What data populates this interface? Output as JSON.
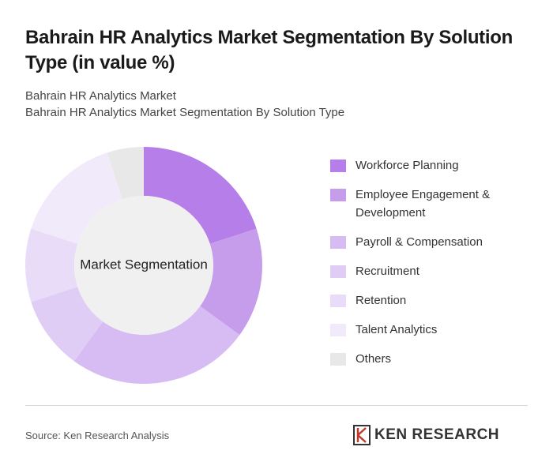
{
  "title": "Bahrain HR Analytics Market Segmentation By Solution Type (in value %)",
  "subtitle_lines": [
    "Bahrain HR Analytics Market",
    "Bahrain HR Analytics Market Segmentation By Solution Type"
  ],
  "chart_data": {
    "type": "pie",
    "center_label": "Market Segmentation",
    "categories": [
      "Workforce Planning",
      "Employee Engagement & Development",
      "Payroll & Compensation",
      "Recruitment",
      "Retention",
      "Talent Analytics",
      "Others"
    ],
    "values": [
      20,
      15,
      25,
      10,
      10,
      15,
      5
    ],
    "colors": [
      "#b57ee8",
      "#c69deb",
      "#d7bcf3",
      "#e0cdf6",
      "#e8dcf9",
      "#f1eafb",
      "#e8e8e8"
    ]
  },
  "source": "Source: Ken Research Analysis",
  "logo": "KEN RESEARCH"
}
